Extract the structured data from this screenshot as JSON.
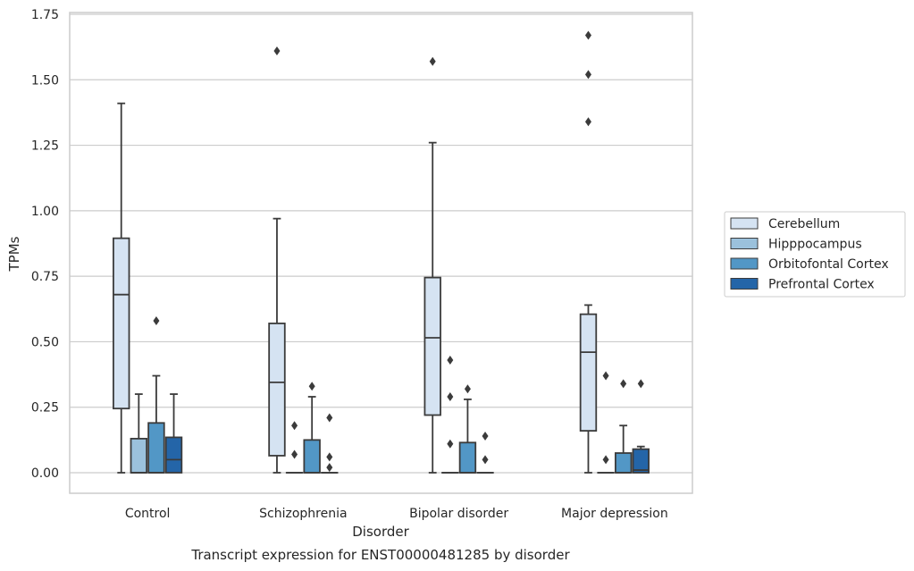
{
  "chart_data": {
    "type": "box",
    "xlabel": "Disorder",
    "ylabel": "TPMs",
    "caption": "Transcript expression for ENST00000481285 by disorder",
    "ylim": [
      -0.08,
      1.75
    ],
    "yticks": [
      0.0,
      0.25,
      0.5,
      0.75,
      1.0,
      1.25,
      1.5,
      1.75
    ],
    "ytick_labels": [
      "0.00",
      "0.25",
      "0.50",
      "0.75",
      "1.00",
      "1.25",
      "1.50",
      "1.75"
    ],
    "grid": "horizontal",
    "legend_position": "right",
    "categories": [
      "Control",
      "Schizophrenia",
      "Bipolar disorder",
      "Major depression"
    ],
    "series": [
      {
        "name": "Cerebellum",
        "color": "#d5e3f2",
        "boxes": [
          {
            "whislo": 0.0,
            "q1": 0.245,
            "med": 0.68,
            "q3": 0.895,
            "whishi": 1.41,
            "fliers": []
          },
          {
            "whislo": 0.0,
            "q1": 0.065,
            "med": 0.345,
            "q3": 0.57,
            "whishi": 0.97,
            "fliers": [
              1.61
            ]
          },
          {
            "whislo": 0.0,
            "q1": 0.22,
            "med": 0.515,
            "q3": 0.745,
            "whishi": 1.26,
            "fliers": [
              1.57
            ]
          },
          {
            "whislo": 0.0,
            "q1": 0.16,
            "med": 0.46,
            "q3": 0.605,
            "whishi": 0.64,
            "fliers": [
              1.34,
              1.52,
              1.67
            ]
          }
        ]
      },
      {
        "name": "Hipppocampus",
        "color": "#9bc1dc",
        "boxes": [
          {
            "whislo": 0.0,
            "q1": 0.0,
            "med": 0.0,
            "q3": 0.13,
            "whishi": 0.3,
            "fliers": []
          },
          {
            "whislo": 0.0,
            "q1": 0.0,
            "med": 0.0,
            "q3": 0.0,
            "whishi": 0.0,
            "fliers": [
              0.07,
              0.18
            ]
          },
          {
            "whislo": 0.0,
            "q1": 0.0,
            "med": 0.0,
            "q3": 0.0,
            "whishi": 0.0,
            "fliers": [
              0.11,
              0.29,
              0.43
            ]
          },
          {
            "whislo": 0.0,
            "q1": 0.0,
            "med": 0.0,
            "q3": 0.0,
            "whishi": 0.0,
            "fliers": [
              0.05,
              0.37
            ]
          }
        ]
      },
      {
        "name": "Orbitofontal Cortex",
        "color": "#5297c6",
        "boxes": [
          {
            "whislo": 0.0,
            "q1": 0.0,
            "med": 0.0,
            "q3": 0.19,
            "whishi": 0.37,
            "fliers": [
              0.58
            ]
          },
          {
            "whislo": 0.0,
            "q1": 0.0,
            "med": 0.0,
            "q3": 0.125,
            "whishi": 0.29,
            "fliers": [
              0.33
            ]
          },
          {
            "whislo": 0.0,
            "q1": 0.0,
            "med": 0.0,
            "q3": 0.115,
            "whishi": 0.28,
            "fliers": [
              0.32
            ]
          },
          {
            "whislo": 0.0,
            "q1": 0.0,
            "med": 0.0,
            "q3": 0.075,
            "whishi": 0.18,
            "fliers": [
              0.34
            ]
          }
        ]
      },
      {
        "name": "Prefrontal Cortex",
        "color": "#2465a8",
        "boxes": [
          {
            "whislo": 0.0,
            "q1": 0.0,
            "med": 0.05,
            "q3": 0.135,
            "whishi": 0.3,
            "fliers": []
          },
          {
            "whislo": 0.0,
            "q1": 0.0,
            "med": 0.0,
            "q3": 0.0,
            "whishi": 0.0,
            "fliers": [
              0.02,
              0.06,
              0.21
            ]
          },
          {
            "whislo": 0.0,
            "q1": 0.0,
            "med": 0.0,
            "q3": 0.0,
            "whishi": 0.0,
            "fliers": [
              0.05,
              0.14
            ]
          },
          {
            "whislo": 0.0,
            "q1": 0.0,
            "med": 0.01,
            "q3": 0.09,
            "whishi": 0.1,
            "fliers": [
              0.34
            ]
          }
        ]
      }
    ]
  }
}
